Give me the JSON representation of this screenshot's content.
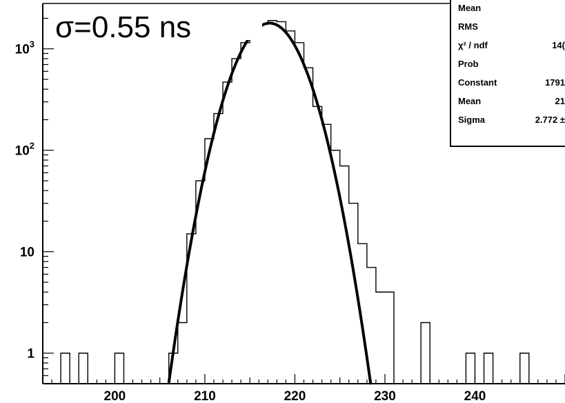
{
  "chart_data": {
    "type": "histogram",
    "title": "",
    "xlabel": "",
    "ylabel": "",
    "xlim": [
      192,
      250
    ],
    "ylim": [
      0.5,
      2800
    ],
    "log_y": true,
    "grid": false,
    "annotation": "σ=0.55 ns",
    "xticks": [
      {
        "value": 200,
        "label": "200"
      },
      {
        "value": 210,
        "label": "210"
      },
      {
        "value": 220,
        "label": "220"
      },
      {
        "value": 230,
        "label": "230"
      },
      {
        "value": 240,
        "label": "240"
      }
    ],
    "yticks": [
      {
        "value": 1,
        "label": "1",
        "sup": ""
      },
      {
        "value": 10,
        "label": "10",
        "sup": ""
      },
      {
        "value": 100,
        "label": "10",
        "sup": "2"
      },
      {
        "value": 1000,
        "label": "10",
        "sup": "3"
      }
    ],
    "bin_width": 1,
    "bins": [
      {
        "x": 194,
        "count": 1
      },
      {
        "x": 196,
        "count": 1
      },
      {
        "x": 200,
        "count": 1
      },
      {
        "x": 206,
        "count": 1
      },
      {
        "x": 207,
        "count": 2
      },
      {
        "x": 208,
        "count": 15
      },
      {
        "x": 209,
        "count": 50
      },
      {
        "x": 210,
        "count": 130
      },
      {
        "x": 211,
        "count": 230
      },
      {
        "x": 212,
        "count": 470
      },
      {
        "x": 213,
        "count": 800
      },
      {
        "x": 214,
        "count": 1150
      },
      {
        "x": 215,
        "count": 1550
      },
      {
        "x": 216,
        "count": 1750
      },
      {
        "x": 217,
        "count": 1900
      },
      {
        "x": 218,
        "count": 1850
      },
      {
        "x": 219,
        "count": 1500
      },
      {
        "x": 220,
        "count": 1150
      },
      {
        "x": 221,
        "count": 650
      },
      {
        "x": 222,
        "count": 270
      },
      {
        "x": 223,
        "count": 180
      },
      {
        "x": 224,
        "count": 100
      },
      {
        "x": 225,
        "count": 70
      },
      {
        "x": 226,
        "count": 30
      },
      {
        "x": 227,
        "count": 12
      },
      {
        "x": 228,
        "count": 7
      },
      {
        "x": 229,
        "count": 4
      },
      {
        "x": 230,
        "count": 4
      },
      {
        "x": 234,
        "count": 2
      },
      {
        "x": 239,
        "count": 1
      },
      {
        "x": 241,
        "count": 1
      },
      {
        "x": 245,
        "count": 1
      }
    ],
    "fit": {
      "type": "gaussian",
      "constant": 1791,
      "mean": 217.2,
      "sigma": 2.772,
      "range": [
        206,
        228.5
      ]
    },
    "stats_box": [
      {
        "label": "Mean",
        "value": ""
      },
      {
        "label": "RMS",
        "value": ""
      },
      {
        "label": "χ² / ndf",
        "value": "14("
      },
      {
        "label": "Prob",
        "value": ""
      },
      {
        "label": "Constant",
        "value": "1791"
      },
      {
        "label": "Mean",
        "value": "21"
      },
      {
        "label": "Sigma",
        "value": "2.772 ±"
      }
    ]
  }
}
